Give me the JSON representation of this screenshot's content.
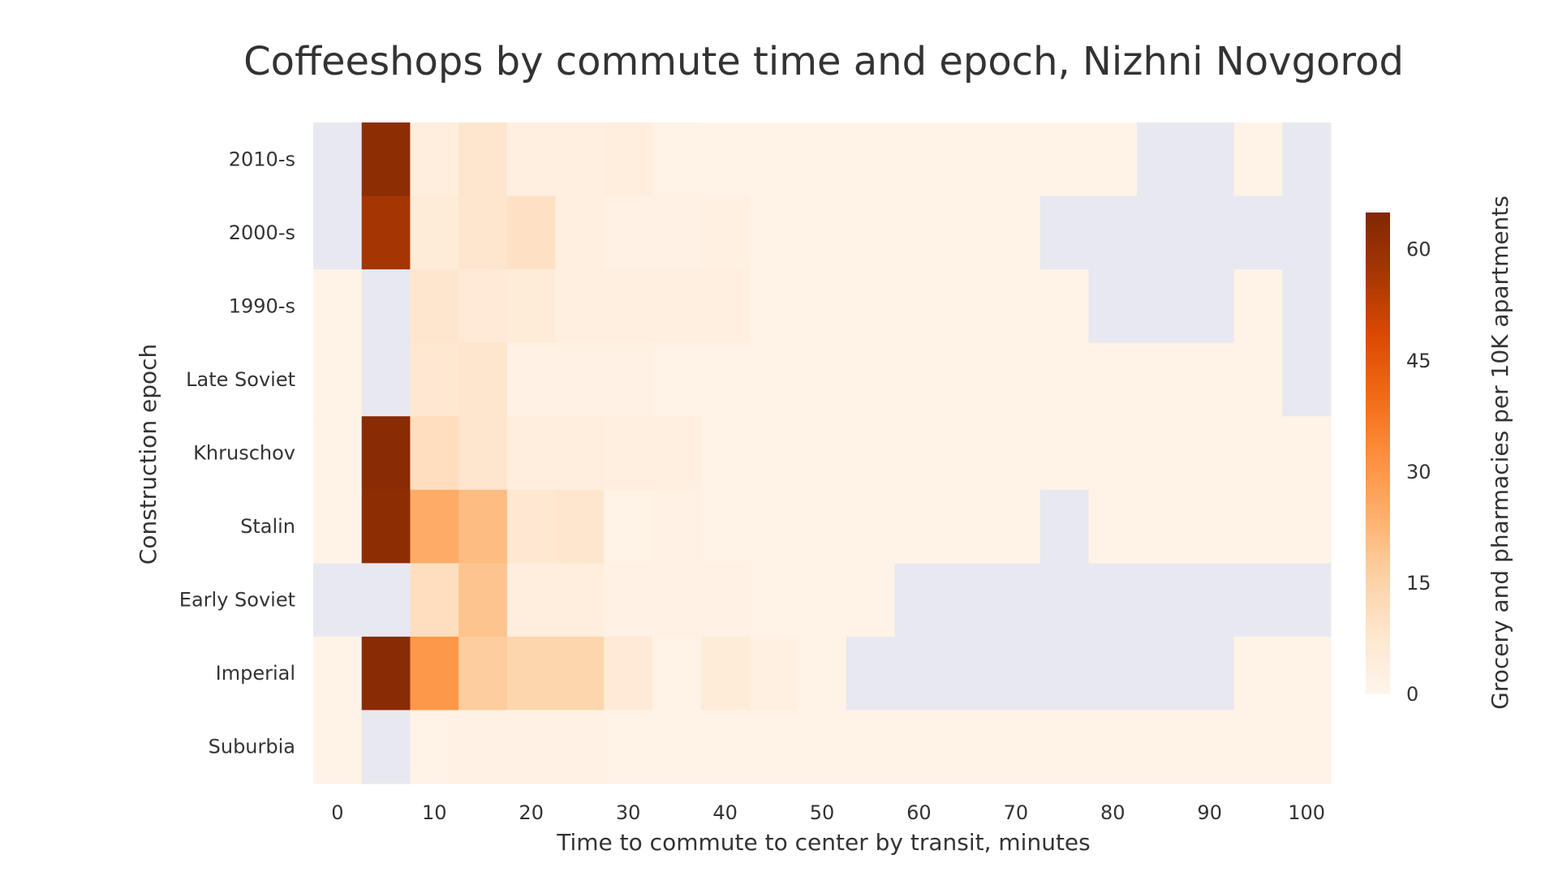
{
  "chart_data": {
    "type": "heatmap",
    "title": "Coffeeshops by commute time and epoch, Nizhni Novgorod",
    "xlabel": "Time to commute to center by transit, minutes",
    "ylabel": "Construction epoch",
    "colorbar_label": "Grocery and pharmacies per 10K apartments",
    "x": [
      0,
      5,
      10,
      15,
      20,
      25,
      30,
      35,
      40,
      45,
      50,
      55,
      60,
      65,
      70,
      75,
      80,
      85,
      90,
      95,
      100
    ],
    "x_tick_labels": [
      "0",
      "10",
      "20",
      "30",
      "40",
      "50",
      "60",
      "70",
      "80",
      "90",
      "100"
    ],
    "x_tick_values": [
      0,
      10,
      20,
      30,
      40,
      50,
      60,
      70,
      80,
      90,
      100
    ],
    "y": [
      "2010-s",
      "2000-s",
      "1990-s",
      "Late Soviet",
      "Khruschov",
      "Stalin",
      "Early Soviet",
      "Imperial",
      "Suburbia"
    ],
    "z": [
      [
        null,
        62,
        4,
        8,
        3,
        3,
        4,
        1.5,
        1,
        1,
        1,
        1,
        1,
        1,
        1,
        1,
        1,
        null,
        null,
        1,
        null
      ],
      [
        null,
        57,
        5,
        8,
        10,
        3,
        2,
        2,
        2.5,
        1.5,
        1.5,
        1,
        1,
        1,
        1,
        null,
        null,
        null,
        null,
        null,
        null
      ],
      [
        1,
        null,
        8,
        6,
        5,
        3,
        3,
        3,
        3,
        1,
        1,
        1,
        1,
        1,
        1,
        1,
        null,
        null,
        null,
        1,
        null
      ],
      [
        1,
        null,
        7,
        8,
        2,
        2,
        2,
        1.5,
        1,
        1,
        1,
        1,
        1,
        1,
        1,
        1,
        1,
        1,
        1,
        1,
        null
      ],
      [
        1,
        63,
        11,
        8,
        4,
        4,
        3,
        3,
        1.5,
        1,
        1,
        1,
        1,
        1,
        1,
        1,
        1,
        1,
        1,
        1,
        1
      ],
      [
        1,
        62,
        25,
        21,
        7,
        8,
        1,
        2,
        1.5,
        1,
        1,
        1,
        1,
        1,
        1,
        null,
        1,
        1,
        1,
        1,
        1
      ],
      [
        null,
        null,
        11,
        19,
        4,
        4,
        2,
        2,
        2,
        1.5,
        1,
        1,
        null,
        null,
        null,
        null,
        null,
        null,
        null,
        null,
        null
      ],
      [
        1,
        63,
        30,
        17,
        14,
        14,
        6,
        1,
        5,
        2.5,
        1,
        null,
        null,
        null,
        null,
        null,
        null,
        null,
        null,
        1,
        1
      ],
      [
        1,
        null,
        1.5,
        2,
        2,
        2,
        1.5,
        1,
        1,
        1,
        1,
        1,
        1,
        1,
        1,
        1,
        1,
        1,
        1,
        1,
        1
      ]
    ],
    "zlim": [
      0,
      65
    ],
    "colorbar_ticks": [
      0,
      15,
      30,
      45,
      60
    ],
    "colorscale": [
      [
        0.0,
        "#fff5eb"
      ],
      [
        0.125,
        "#fee6ce"
      ],
      [
        0.25,
        "#fdd0a2"
      ],
      [
        0.375,
        "#fdae6b"
      ],
      [
        0.5,
        "#fd8d3c"
      ],
      [
        0.625,
        "#f16913"
      ],
      [
        0.75,
        "#d94801"
      ],
      [
        0.875,
        "#a63603"
      ],
      [
        1.0,
        "#7f2704"
      ]
    ],
    "missing_color": "#e8e8f0",
    "grid": false,
    "legend": "colorbar-right"
  }
}
